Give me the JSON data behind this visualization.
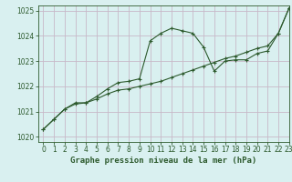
{
  "title": "Graphe pression niveau de la mer (hPa)",
  "bg_color": "#d9f0f0",
  "grid_color": "#c8b8c8",
  "line_color": "#2d5a2d",
  "xlim": [
    -0.5,
    23
  ],
  "ylim": [
    1019.8,
    1025.2
  ],
  "yticks": [
    1020,
    1021,
    1022,
    1023,
    1024,
    1025
  ],
  "xticks": [
    0,
    1,
    2,
    3,
    4,
    5,
    6,
    7,
    8,
    9,
    10,
    11,
    12,
    13,
    14,
    15,
    16,
    17,
    18,
    19,
    20,
    21,
    22,
    23
  ],
  "line1_x": [
    0,
    1,
    2,
    3,
    4,
    5,
    6,
    7,
    8,
    9,
    10,
    11,
    12,
    13,
    14,
    15,
    16,
    17,
    18,
    19,
    20,
    21,
    22,
    23
  ],
  "line1_y": [
    1020.3,
    1020.7,
    1021.1,
    1021.3,
    1021.35,
    1021.6,
    1021.9,
    1022.15,
    1022.2,
    1022.3,
    1023.8,
    1024.1,
    1024.3,
    1024.2,
    1024.1,
    1023.55,
    1022.6,
    1023.0,
    1023.05,
    1023.05,
    1023.3,
    1023.4,
    1024.1,
    1025.1
  ],
  "line2_x": [
    0,
    1,
    2,
    3,
    4,
    5,
    6,
    7,
    8,
    9,
    10,
    11,
    12,
    13,
    14,
    15,
    16,
    17,
    18,
    19,
    20,
    21,
    22,
    23
  ],
  "line2_y": [
    1020.3,
    1020.7,
    1021.1,
    1021.35,
    1021.35,
    1021.5,
    1021.7,
    1021.85,
    1021.9,
    1022.0,
    1022.1,
    1022.2,
    1022.35,
    1022.5,
    1022.65,
    1022.8,
    1022.95,
    1023.1,
    1023.2,
    1023.35,
    1023.5,
    1023.6,
    1024.1,
    1025.1
  ],
  "tick_color": "#2d5a2d",
  "label_fontsize": 5.5,
  "title_fontsize": 6.5
}
